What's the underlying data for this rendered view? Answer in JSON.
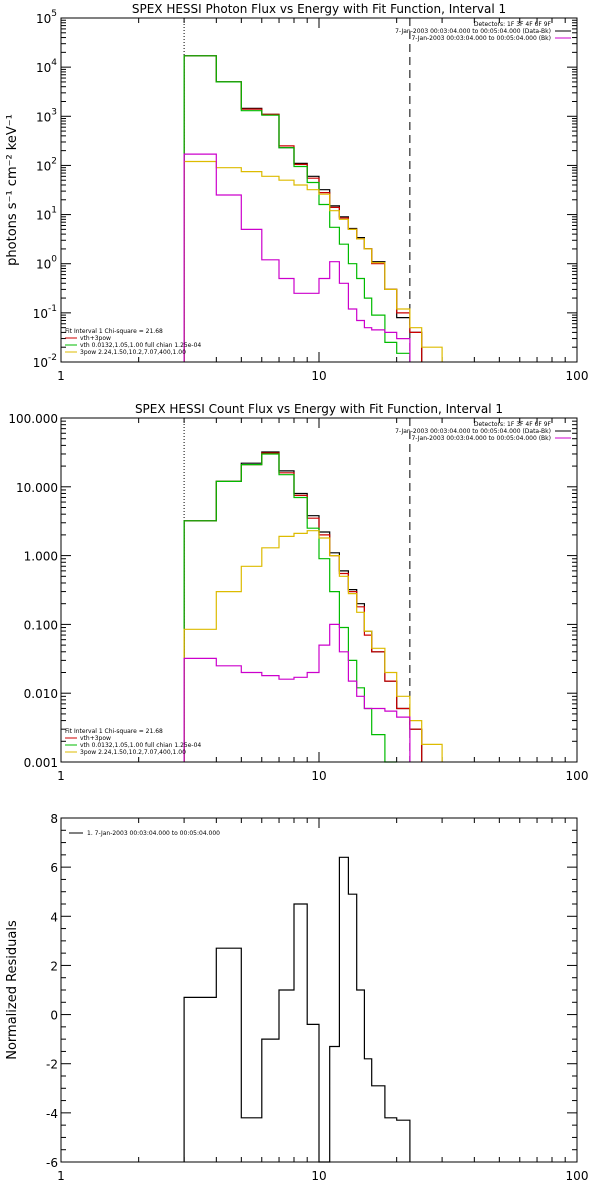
{
  "chart_data": [
    {
      "type": "line",
      "step": true,
      "title": "SPEX HESSI Photon Flux vs Energy with Fit Function, Interval 1",
      "ylabel": "photons s⁻¹ cm⁻² keV⁻¹",
      "xlabel": "",
      "xscale": "log",
      "yscale": "log",
      "xlim": [
        1,
        100
      ],
      "ylim": [
        0.01,
        100000
      ],
      "xticks": [
        {
          "v": 1,
          "label": "1"
        },
        {
          "v": 10,
          "label": "10"
        },
        {
          "v": 100,
          "label": "100"
        }
      ],
      "yticks": [
        {
          "v": 0.01,
          "base": "10",
          "exp": "-2"
        },
        {
          "v": 0.1,
          "base": "10",
          "exp": "-1"
        },
        {
          "v": 1,
          "base": "10",
          "exp": "0"
        },
        {
          "v": 10,
          "base": "10",
          "exp": "1"
        },
        {
          "v": 100,
          "base": "10",
          "exp": "2"
        },
        {
          "v": 1000,
          "base": "10",
          "exp": "3"
        },
        {
          "v": 10000,
          "base": "10",
          "exp": "4"
        },
        {
          "v": 100000,
          "base": "10",
          "exp": "5"
        }
      ],
      "vlines": [
        {
          "x": 3,
          "style": "dotted"
        },
        {
          "x": 22.5,
          "style": "dashed"
        }
      ],
      "legend_top": [
        "Detectors: 1F 3F 4F 6F 9F",
        "7-Jan-2003 00:03:04.000 to 00:05:04.000 (Data-Bk)",
        "7-Jan-2003 00:03:04.000 to 00:05:04.000 (Bk)"
      ],
      "legend_top_colors": [
        "",
        "#000000",
        "#cc00cc"
      ],
      "legend_bottom": [
        "Fit Interval 1     Chi-square = 21.68",
        "vth+3pow",
        "vth 0.0132,1.05,1.00  full chian 1.25e-04",
        "3pow 2.24,1.50,10.2,7.07,400,1.00"
      ],
      "legend_bottom_colors": [
        "",
        "#cc0000",
        "#00bb00",
        "#ddbb00"
      ],
      "edges": [
        3,
        4,
        5,
        6,
        7,
        8,
        9,
        10,
        11,
        12,
        13,
        14,
        15,
        16,
        18,
        20,
        22.5,
        25,
        30
      ],
      "series": [
        {
          "name": "Data",
          "color": "#000000",
          "values": [
            17000,
            5000,
            1450,
            1100,
            230,
            110,
            60,
            32,
            15,
            9,
            5.2,
            3.4,
            2.0,
            1.1,
            0.3,
            0.08,
            0.04,
            null
          ]
        },
        {
          "name": "vth+3pow",
          "color": "#cc0000",
          "values": [
            17000,
            5000,
            1400,
            1100,
            250,
            105,
            55,
            28,
            14,
            8.5,
            5,
            3.2,
            2.0,
            1.0,
            0.3,
            0.1,
            0.04,
            null
          ]
        },
        {
          "name": "vth",
          "color": "#00bb00",
          "values": [
            17000,
            5000,
            1300,
            1050,
            230,
            95,
            45,
            16,
            5.5,
            2.5,
            1.0,
            0.5,
            0.2,
            0.09,
            0.025,
            0.015,
            null,
            null
          ]
        },
        {
          "name": "3pow",
          "color": "#ddbb00",
          "values": [
            120,
            90,
            75,
            60,
            50,
            40,
            32,
            26,
            12,
            8,
            5,
            3.2,
            2.0,
            1.05,
            0.3,
            0.12,
            0.05,
            0.02
          ]
        },
        {
          "name": "Bk",
          "color": "#cc00cc",
          "values": [
            170,
            25,
            5,
            1.2,
            0.5,
            0.25,
            0.25,
            0.5,
            1.1,
            0.4,
            0.12,
            0.07,
            0.05,
            0.045,
            0.04,
            0.03,
            null,
            null
          ]
        }
      ]
    },
    {
      "type": "line",
      "step": true,
      "title": "SPEX HESSI Count Flux vs Energy with Fit Function, Interval 1",
      "ylabel": "",
      "xlabel": "",
      "xscale": "log",
      "yscale": "log",
      "xlim": [
        1,
        100
      ],
      "ylim": [
        0.001,
        100
      ],
      "xticks": [
        {
          "v": 1,
          "label": "1"
        },
        {
          "v": 10,
          "label": "10"
        },
        {
          "v": 100,
          "label": "100"
        }
      ],
      "yticks": [
        {
          "v": 0.001,
          "label": "0.001"
        },
        {
          "v": 0.01,
          "label": "0.010"
        },
        {
          "v": 0.1,
          "label": "0.100"
        },
        {
          "v": 1,
          "label": "1.000"
        },
        {
          "v": 10,
          "label": "10.000"
        },
        {
          "v": 100,
          "label": "100.000"
        }
      ],
      "vlines": [
        {
          "x": 3,
          "style": "dotted"
        },
        {
          "x": 22.5,
          "style": "dashed"
        }
      ],
      "legend_top": [
        "Detectors: 1F 3F 4F 6F 9F",
        "7-Jan-2003 00:03:04.000 to 00:05:04.000 (Data-Bk)",
        "7-Jan-2003 00:03:04.000 to 00:05:04.000 (Bk)"
      ],
      "legend_top_colors": [
        "",
        "#000000",
        "#cc00cc"
      ],
      "legend_bottom": [
        "Fit Interval 1     Chi-square = 21.68",
        "vth+3pow",
        "vth 0.0132,1.05,1.00  full chian 1.25e-04",
        "3pow 2.24,1.50,10.2,7.07,400,1.00"
      ],
      "legend_bottom_colors": [
        "",
        "#cc0000",
        "#00bb00",
        "#ddbb00"
      ],
      "edges": [
        3,
        4,
        5,
        6,
        7,
        8,
        9,
        10,
        11,
        12,
        13,
        14,
        15,
        16,
        18,
        20,
        22.5,
        25,
        30
      ],
      "series": [
        {
          "name": "Data",
          "color": "#000000",
          "values": [
            3.2,
            12,
            22,
            32,
            17,
            8,
            3.8,
            2.2,
            1.1,
            0.6,
            0.32,
            0.2,
            0.08,
            0.04,
            0.015,
            0.006,
            0.003,
            null
          ]
        },
        {
          "name": "vth+3pow",
          "color": "#cc0000",
          "values": [
            3.2,
            12,
            21,
            31,
            16,
            7.5,
            3.5,
            2.0,
            1.0,
            0.55,
            0.3,
            0.18,
            0.07,
            0.04,
            0.015,
            0.006,
            0.003,
            null
          ]
        },
        {
          "name": "vth",
          "color": "#00bb00",
          "values": [
            3.2,
            12,
            21,
            30,
            15,
            7,
            2.5,
            0.9,
            0.3,
            0.09,
            0.03,
            0.012,
            0.006,
            0.0025,
            0.001,
            null,
            null,
            null
          ]
        },
        {
          "name": "3pow",
          "color": "#ddbb00",
          "values": [
            0.085,
            0.3,
            0.7,
            1.3,
            1.9,
            2.1,
            2.3,
            1.8,
            1.0,
            0.5,
            0.28,
            0.15,
            0.08,
            0.045,
            0.02,
            0.009,
            0.004,
            0.0018
          ]
        },
        {
          "name": "Bk",
          "color": "#cc00cc",
          "values": [
            0.032,
            0.025,
            0.02,
            0.018,
            0.016,
            0.017,
            0.02,
            0.05,
            0.1,
            0.04,
            0.015,
            0.009,
            0.006,
            0.006,
            0.0055,
            0.0045,
            null,
            null
          ]
        }
      ]
    },
    {
      "type": "line",
      "step": true,
      "title": "",
      "ylabel": "Normalized Residuals",
      "xlabel": "",
      "xscale": "log",
      "yscale": "linear",
      "xlim": [
        1,
        100
      ],
      "ylim": [
        -6,
        8
      ],
      "xticks": [
        {
          "v": 1,
          "label": "1"
        },
        {
          "v": 10,
          "label": "10"
        },
        {
          "v": 100,
          "label": "100"
        }
      ],
      "yticks": [
        {
          "v": -6,
          "label": "-6"
        },
        {
          "v": -4,
          "label": "-4"
        },
        {
          "v": -2,
          "label": "-2"
        },
        {
          "v": 0,
          "label": "0"
        },
        {
          "v": 2,
          "label": "2"
        },
        {
          "v": 4,
          "label": "4"
        },
        {
          "v": 6,
          "label": "6"
        },
        {
          "v": 8,
          "label": "8"
        }
      ],
      "legend_top": [
        "1.  7-Jan-2003 00:03:04.000 to 00:05:04.000"
      ],
      "legend_top_colors": [
        "#000000"
      ],
      "edges": [
        3,
        4,
        5,
        6,
        7,
        8,
        9,
        10,
        11,
        12,
        13,
        14,
        15,
        16,
        18,
        20,
        22.5
      ],
      "series": [
        {
          "name": "",
          "color": "#000000",
          "values": [
            0.7,
            2.7,
            -4.2,
            -1.0,
            1.0,
            4.5,
            -0.4,
            -6.5,
            -1.3,
            6.4,
            4.9,
            1.0,
            -1.8,
            -2.9,
            -4.2,
            -4.3
          ]
        }
      ]
    }
  ]
}
